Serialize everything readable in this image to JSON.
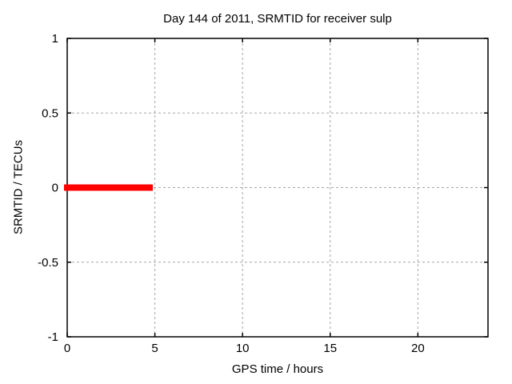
{
  "chart_data": {
    "type": "line",
    "title": "Day 144 of 2011, SRMTID for receiver sulp",
    "xlabel": "GPS time / hours",
    "ylabel": "SRMTID / TECUs",
    "xlim": [
      0,
      24
    ],
    "ylim": [
      -1,
      1
    ],
    "xticks": [
      {
        "value": 0,
        "label": "0"
      },
      {
        "value": 5,
        "label": "5"
      },
      {
        "value": 10,
        "label": "10"
      },
      {
        "value": 15,
        "label": "15"
      },
      {
        "value": 20,
        "label": "20"
      }
    ],
    "yticks": [
      {
        "value": -1,
        "label": "-1"
      },
      {
        "value": -0.5,
        "label": "-0.5"
      },
      {
        "value": 0,
        "label": "0"
      },
      {
        "value": 0.5,
        "label": "0.5"
      },
      {
        "value": 1,
        "label": "1"
      }
    ],
    "grid": true,
    "legend": "none",
    "series": [
      {
        "name": "SRMTID",
        "color": "#ff0000",
        "linewidth": 8,
        "points": [
          [
            0,
            0
          ],
          [
            4.7,
            0
          ]
        ]
      }
    ],
    "colors": {
      "background": "#ffffff",
      "border": "#000000",
      "grid": "#a6a6a6",
      "text": "#000000"
    }
  }
}
